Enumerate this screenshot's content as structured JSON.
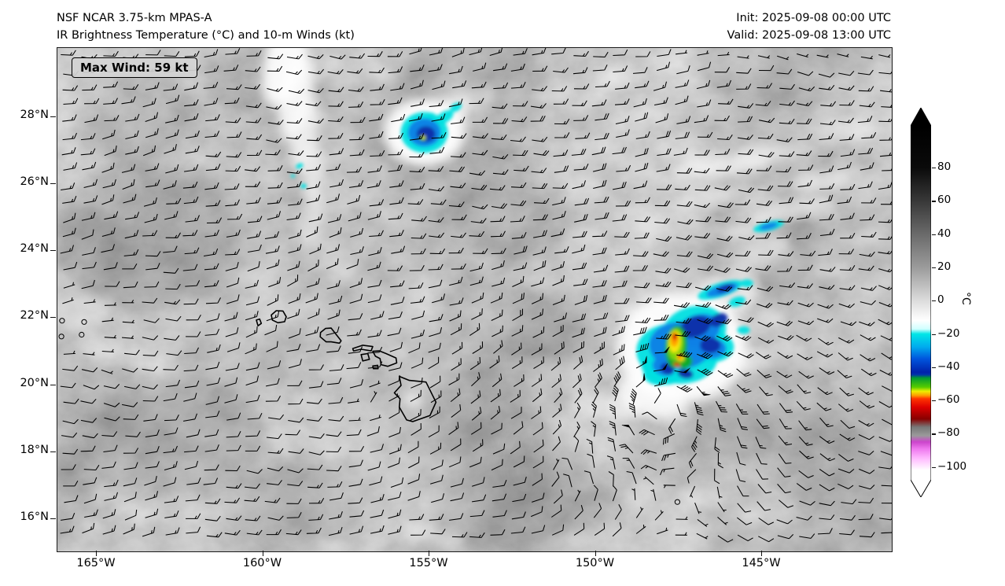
{
  "header": {
    "title_line1": "NSF NCAR 3.75-km MPAS-A",
    "title_line2": "IR Brightness Temperature (°C) and 10-m Winds (kt)",
    "init_time": "Init: 2025-09-08 00:00 UTC",
    "valid_time": "Valid: 2025-09-08 13:00 UTC"
  },
  "map": {
    "max_wind_label": "Max Wind: 59 kt"
  },
  "axes": {
    "lat_ticks": [
      "28°N",
      "26°N",
      "24°N",
      "22°N",
      "20°N",
      "18°N",
      "16°N"
    ],
    "lon_ticks": [
      "165°W",
      "160°W",
      "155°W",
      "150°W",
      "145°W"
    ]
  },
  "colorbar": {
    "ticks": [
      "80",
      "60",
      "40",
      "20",
      "0",
      "−20",
      "−40",
      "−60",
      "−80",
      "−100"
    ],
    "label": "°C"
  },
  "chart_data": {
    "type": "heatmap",
    "title": "NSF NCAR 3.75-km MPAS-A",
    "subtitle": "IR Brightness Temperature (°C) and 10-m Winds (kt)",
    "init": "2025-09-08 00:00 UTC",
    "valid": "2025-09-08 13:00 UTC",
    "max_wind_kt": 59,
    "wind_barb_units": "kt",
    "x_axis": {
      "tick_labels": [
        "165°W",
        "160°W",
        "155°W",
        "150°W",
        "145°W"
      ],
      "tick_values_deg_west": [
        165,
        160,
        155,
        150,
        145
      ],
      "range_deg_west": [
        166.2,
        141.1
      ]
    },
    "y_axis": {
      "tick_labels": [
        "28°N",
        "26°N",
        "24°N",
        "22°N",
        "20°N",
        "18°N",
        "16°N"
      ],
      "tick_values_deg_north": [
        28,
        26,
        24,
        22,
        20,
        18,
        16
      ],
      "range_deg_north": [
        15.0,
        30.1
      ]
    },
    "colorbar": {
      "units": "°C",
      "tick_values": [
        80,
        60,
        40,
        20,
        0,
        -20,
        -40,
        -60,
        -80,
        -100
      ],
      "extend": "both",
      "scale_description": [
        {
          "value": 80,
          "color": "black"
        },
        {
          "value": 40,
          "color": "dark gray"
        },
        {
          "value": 0,
          "color": "near white"
        },
        {
          "value": -20,
          "color": "cyan"
        },
        {
          "value": -35,
          "color": "blue"
        },
        {
          "value": -45,
          "color": "dark blue to green"
        },
        {
          "value": -55,
          "color": "yellow"
        },
        {
          "value": -60,
          "color": "red"
        },
        {
          "value": -75,
          "color": "dark red to gray"
        },
        {
          "value": -85,
          "color": "magenta"
        },
        {
          "value": -100,
          "color": "white"
        }
      ]
    },
    "features": [
      {
        "name": "tropical-cyclone",
        "lat_deg_north": 19.5,
        "lon_deg_west": 148.0,
        "note": "closed cyclonic 10-m wind circulation; coldest convective cloud tops (−40 to −75 °C, green/yellow/red shades) displaced NE of center near 21°N 147.5°W"
      },
      {
        "name": "convective-cluster",
        "lat_deg_north": 27.5,
        "lon_deg_west": 155.2,
        "note": "isolated cold-top cell, cloud tops near −30 to −50 °C"
      },
      {
        "name": "cold-top-streaks",
        "lat_deg_north": 23.5,
        "lon_deg_west": 145.5,
        "note": "cyan/blue cold cloud streaks NE of the cyclone"
      },
      {
        "name": "hawaiian-islands",
        "lat_deg_north": 20.5,
        "lon_deg_west": 157.0,
        "note": "island coastlines outlined in black"
      },
      {
        "name": "calm-wind-regions",
        "note": "open circles (calm winds) near 21.8°N 165.5°W, along the northern edge east of 149°W, near 17.3°N 150.6°W and in the lee of the Big Island"
      }
    ]
  }
}
